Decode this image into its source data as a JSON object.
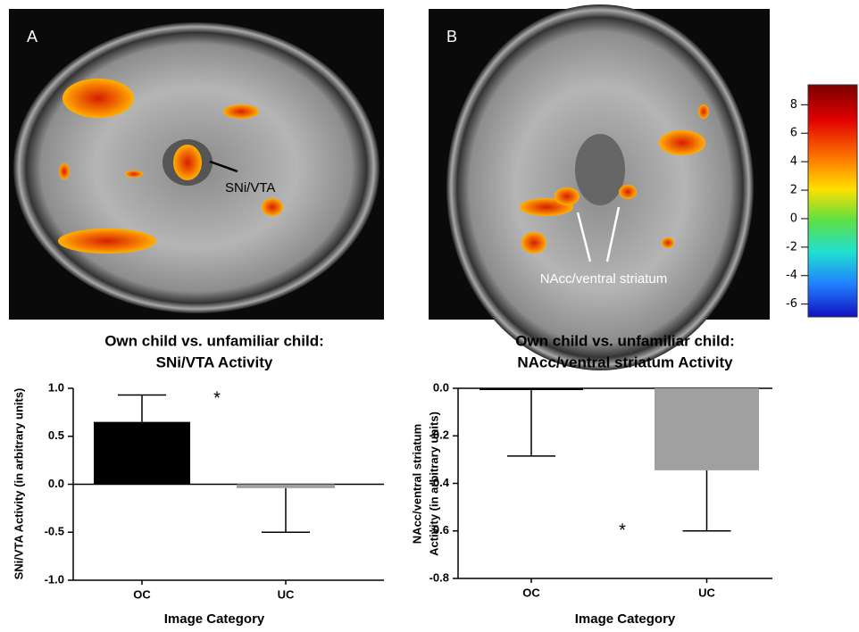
{
  "figure": {
    "panels": [
      {
        "label": "A",
        "annotation": "SNi/VTA"
      },
      {
        "label": "B",
        "annotation": "NAcc/ventral striatum"
      }
    ],
    "colorbar": {
      "lim": [
        -6.9,
        9.4
      ],
      "ticks": [
        8,
        6,
        4,
        2,
        0,
        -2,
        -4,
        -6
      ]
    }
  },
  "chart_data": [
    {
      "type": "bar",
      "title": [
        "Own child vs. unfamiliar child:",
        "SNi/VTA Activity"
      ],
      "ylabel": [
        "SNi/VTA Activity (in arbitrary units)"
      ],
      "xlabel": "Image Category",
      "categories": [
        "OC",
        "UC"
      ],
      "values": [
        0.65,
        -0.04
      ],
      "errors": [
        0.28,
        0.46
      ],
      "colors": [
        "#000000",
        "#a0a0a0"
      ],
      "annotation": "*",
      "ylim": [
        -1,
        1
      ],
      "yticks": [
        {
          "value": 1,
          "label": "1.0"
        },
        {
          "value": 0.5,
          "label": "0.5"
        },
        {
          "value": 0,
          "label": "0.0"
        },
        {
          "value": -0.5,
          "label": "-0.5"
        },
        {
          "value": -1,
          "label": "-1.0"
        }
      ]
    },
    {
      "type": "bar",
      "title": [
        "Own child vs. unfamiliar child:",
        "NAcc/ventral striatum Activity"
      ],
      "ylabel": [
        "NAcc/ventral striatum",
        "Activity (in arbitrary units)"
      ],
      "xlabel": "Image Category",
      "categories": [
        "OC",
        "UC"
      ],
      "values": [
        -0.005,
        -0.345
      ],
      "errors": [
        0.28,
        0.255
      ],
      "colors": [
        "#000000",
        "#a0a0a0"
      ],
      "annotation": "*",
      "ylim": [
        -0.8,
        0
      ],
      "yticks": [
        {
          "value": 0,
          "label": "0.0"
        },
        {
          "value": -0.2,
          "label": "-0.2"
        },
        {
          "value": -0.4,
          "label": "-0.4"
        },
        {
          "value": -0.6,
          "label": "-0.6"
        },
        {
          "value": -0.8,
          "label": "-0.8"
        }
      ]
    }
  ]
}
